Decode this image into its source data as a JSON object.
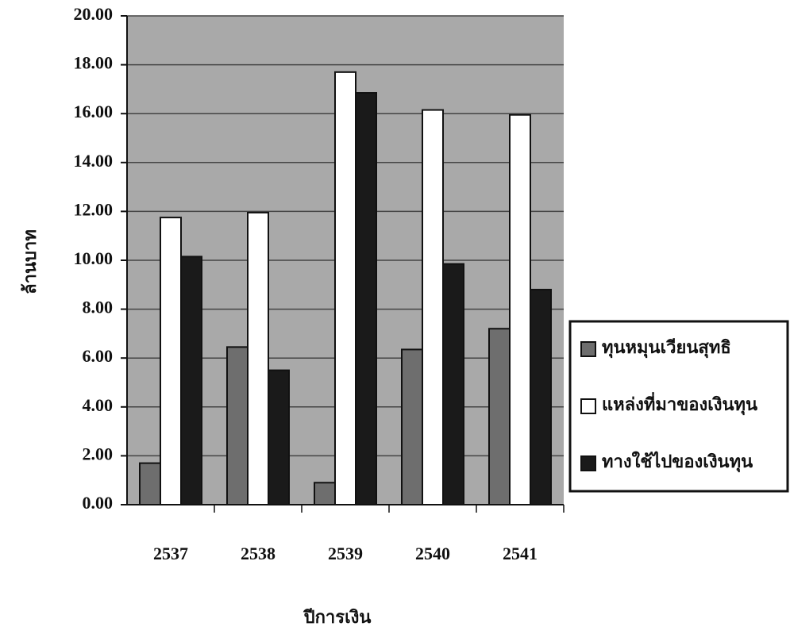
{
  "chart_data": {
    "type": "bar",
    "x_label": "ปีการเงิน",
    "y_label": "ล้านบาท",
    "categories": [
      "2537",
      "2538",
      "2539",
      "2540",
      "2541"
    ],
    "series": [
      {
        "name": "ทุนหมุนเวียนสุทธิ",
        "color": "#6e6e6e",
        "values": [
          1.7,
          6.45,
          0.9,
          6.35,
          7.2
        ]
      },
      {
        "name": "แหล่งที่มาของเงินทุน",
        "color": "#ffffff",
        "values": [
          11.75,
          11.95,
          17.7,
          16.15,
          15.95
        ]
      },
      {
        "name": "ทางใช้ไปของเงินทุน",
        "color": "#1a1a1a",
        "values": [
          10.15,
          5.5,
          16.85,
          9.85,
          8.8
        ]
      }
    ],
    "ylim": [
      0,
      20
    ],
    "yticks": [
      {
        "value": 0,
        "label": "0.00"
      },
      {
        "value": 2,
        "label": "2.00"
      },
      {
        "value": 4,
        "label": "4.00"
      },
      {
        "value": 6,
        "label": "6.00"
      },
      {
        "value": 8,
        "label": "8.00"
      },
      {
        "value": 10,
        "label": "10.00"
      },
      {
        "value": 12,
        "label": "12.00"
      },
      {
        "value": 14,
        "label": "14.00"
      },
      {
        "value": 16,
        "label": "16.00"
      },
      {
        "value": 18,
        "label": "18.00"
      },
      {
        "value": 20,
        "label": "20.00"
      }
    ],
    "grid": true,
    "legend": "right"
  }
}
